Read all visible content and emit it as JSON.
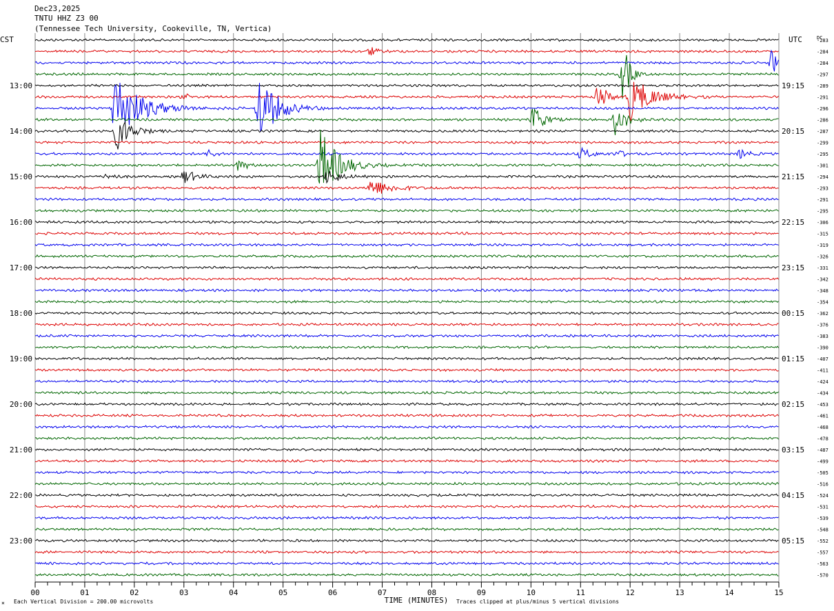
{
  "header": {
    "date": "Dec23,2025",
    "station": "TNTU HHZ Z3 00",
    "location": "(Tennessee Tech University, Cookeville, TN, Vertica)",
    "left_tz": "CST",
    "right_tz": "UTC",
    "dc_label": "DC"
  },
  "footer": {
    "mark": "⨯",
    "scale_note": "Each Vertical Division =  200.00 microvolts",
    "clip_note": "Traces clipped at plus/minus 5 vertical divisions"
  },
  "chart_data": {
    "type": "line",
    "title": "TNTU HHZ Z3 00",
    "xlabel": "TIME (MINUTES)",
    "xlim": [
      0,
      15
    ],
    "x_ticks": [
      "00",
      "01",
      "02",
      "03",
      "04",
      "05",
      "06",
      "07",
      "08",
      "09",
      "10",
      "11",
      "12",
      "13",
      "14",
      "15"
    ],
    "left_hour_labels": [
      "13:00",
      "14:00",
      "15:00",
      "16:00",
      "17:00",
      "18:00",
      "19:00",
      "20:00",
      "21:00",
      "22:00",
      "23:00"
    ],
    "right_hour_labels": [
      "19:15",
      "20:15",
      "21:15",
      "22:15",
      "23:15",
      "00:15",
      "01:15",
      "02:15",
      "03:15",
      "04:15",
      "05:15"
    ],
    "first_labeled_row": 4,
    "rows_per_hour": 4,
    "trace_colors": [
      "#000000",
      "#dd0000",
      "#0000ee",
      "#006600"
    ],
    "dc_offsets": [
      -283,
      -284,
      -284,
      -297,
      -289,
      -291,
      -296,
      -286,
      -287,
      -299,
      -295,
      -301,
      -294,
      -293,
      -291,
      -295,
      -306,
      -315,
      -319,
      -326,
      -331,
      -342,
      -348,
      -354,
      -362,
      -376,
      -383,
      -390,
      -407,
      -411,
      -424,
      -434,
      -453,
      -461,
      -468,
      -478,
      -487,
      -499,
      -505,
      -516,
      -524,
      -531,
      -539,
      -548,
      -552,
      -557,
      -563,
      -570
    ],
    "events": [
      {
        "row": 1,
        "minute": 6.75,
        "amp": 7,
        "dur": 0.35
      },
      {
        "row": 2,
        "minute": 14.85,
        "amp": 16,
        "dur": 0.4
      },
      {
        "row": 3,
        "minute": 11.85,
        "amp": 50,
        "dur": 0.3
      },
      {
        "row": 5,
        "minute": 3.0,
        "amp": 5,
        "dur": 0.3
      },
      {
        "row": 5,
        "minute": 11.35,
        "amp": 22,
        "dur": 0.4
      },
      {
        "row": 5,
        "minute": 12.0,
        "amp": 35,
        "dur": 0.9
      },
      {
        "row": 6,
        "minute": 1.6,
        "amp": 55,
        "dur": 1.1
      },
      {
        "row": 6,
        "minute": 4.5,
        "amp": 55,
        "dur": 0.8
      },
      {
        "row": 7,
        "minute": 10.05,
        "amp": 22,
        "dur": 0.45
      },
      {
        "row": 7,
        "minute": 11.7,
        "amp": 22,
        "dur": 0.5
      },
      {
        "row": 8,
        "minute": 1.65,
        "amp": 30,
        "dur": 0.6
      },
      {
        "row": 10,
        "minute": 3.5,
        "amp": 6,
        "dur": 0.3
      },
      {
        "row": 10,
        "minute": 11.0,
        "amp": 9,
        "dur": 0.45
      },
      {
        "row": 10,
        "minute": 11.75,
        "amp": 6,
        "dur": 0.3
      },
      {
        "row": 10,
        "minute": 14.2,
        "amp": 7,
        "dur": 0.4
      },
      {
        "row": 11,
        "minute": 4.1,
        "amp": 7,
        "dur": 0.55
      },
      {
        "row": 11,
        "minute": 5.75,
        "amp": 55,
        "dur": 0.8
      },
      {
        "row": 12,
        "minute": 1.45,
        "amp": 5,
        "dur": 0.35
      },
      {
        "row": 12,
        "minute": 3.0,
        "amp": 10,
        "dur": 0.55
      },
      {
        "row": 12,
        "minute": 5.9,
        "amp": 14,
        "dur": 0.5
      },
      {
        "row": 13,
        "minute": 6.75,
        "amp": 14,
        "dur": 0.9
      }
    ]
  }
}
